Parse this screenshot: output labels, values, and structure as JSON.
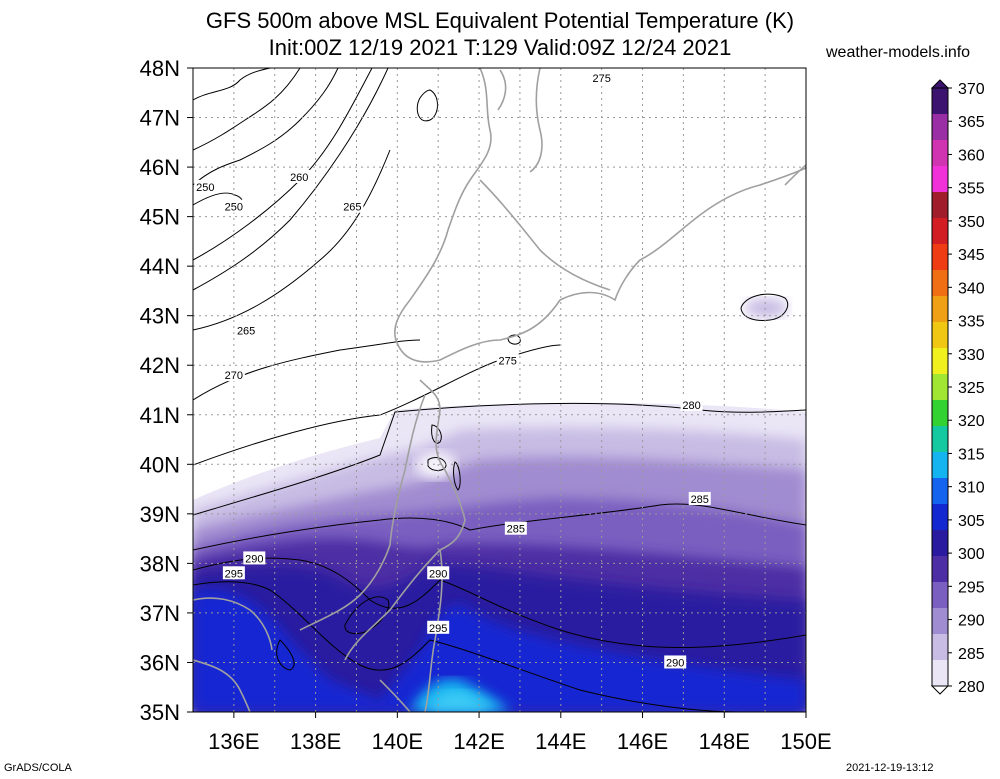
{
  "header": {
    "title_line1": "GFS 500m above MSL Equivalent Potential Temperature (K)",
    "title_line2": "Init:00Z 12/19 2021 T:129 Valid:09Z 12/24 2021",
    "brand": "weather-models.info"
  },
  "footer": {
    "left": "GrADS/COLA",
    "right": "2021-12-19-13:12"
  },
  "map": {
    "lon_labels": [
      "136E",
      "138E",
      "140E",
      "142E",
      "144E",
      "146E",
      "148E",
      "150E"
    ],
    "lat_labels": [
      "48N",
      "47N",
      "46N",
      "45N",
      "44N",
      "43N",
      "42N",
      "41N",
      "40N",
      "39N",
      "38N",
      "37N",
      "36N",
      "35N"
    ],
    "lon_range": [
      135,
      150
    ],
    "lat_range": [
      35,
      48
    ],
    "gridlines": true,
    "contour_labels": [
      {
        "text": "275",
        "lon": 145.0,
        "lat": 47.8
      },
      {
        "text": "250",
        "lon": 135.3,
        "lat": 45.6
      },
      {
        "text": "260",
        "lon": 137.6,
        "lat": 45.8
      },
      {
        "text": "250",
        "lon": 136.0,
        "lat": 45.2
      },
      {
        "text": "265",
        "lon": 138.9,
        "lat": 45.2
      },
      {
        "text": "265",
        "lon": 136.3,
        "lat": 42.7
      },
      {
        "text": "270",
        "lon": 136.0,
        "lat": 41.8
      },
      {
        "text": "275",
        "lon": 142.7,
        "lat": 42.1
      },
      {
        "text": "280",
        "lon": 147.2,
        "lat": 41.2
      },
      {
        "text": "285",
        "lon": 147.4,
        "lat": 39.3
      },
      {
        "text": "285",
        "lon": 142.9,
        "lat": 38.7
      },
      {
        "text": "290",
        "lon": 136.5,
        "lat": 38.1
      },
      {
        "text": "295",
        "lon": 136.0,
        "lat": 37.8
      },
      {
        "text": "290",
        "lon": 141.0,
        "lat": 37.8
      },
      {
        "text": "295",
        "lon": 141.0,
        "lat": 36.7
      },
      {
        "text": "290",
        "lon": 146.8,
        "lat": 36.0
      }
    ]
  },
  "colorbar": {
    "labels": [
      "370",
      "365",
      "360",
      "355",
      "350",
      "345",
      "340",
      "335",
      "330",
      "325",
      "320",
      "315",
      "310",
      "305",
      "300",
      "295",
      "290",
      "285",
      "280"
    ],
    "colors": [
      "#3c1470",
      "#9a2ea4",
      "#d034b0",
      "#f032d8",
      "#a01e2c",
      "#d21e22",
      "#f03c14",
      "#f06e14",
      "#f0a014",
      "#f0c814",
      "#f0f01e",
      "#a0e632",
      "#32d232",
      "#14c8a0",
      "#14b4f0",
      "#1464f0",
      "#1428d2",
      "#2a1aa0",
      "#4e2ea4",
      "#7a5ec0",
      "#a08cd0",
      "#c8bce4",
      "#eae6f6"
    ]
  }
}
